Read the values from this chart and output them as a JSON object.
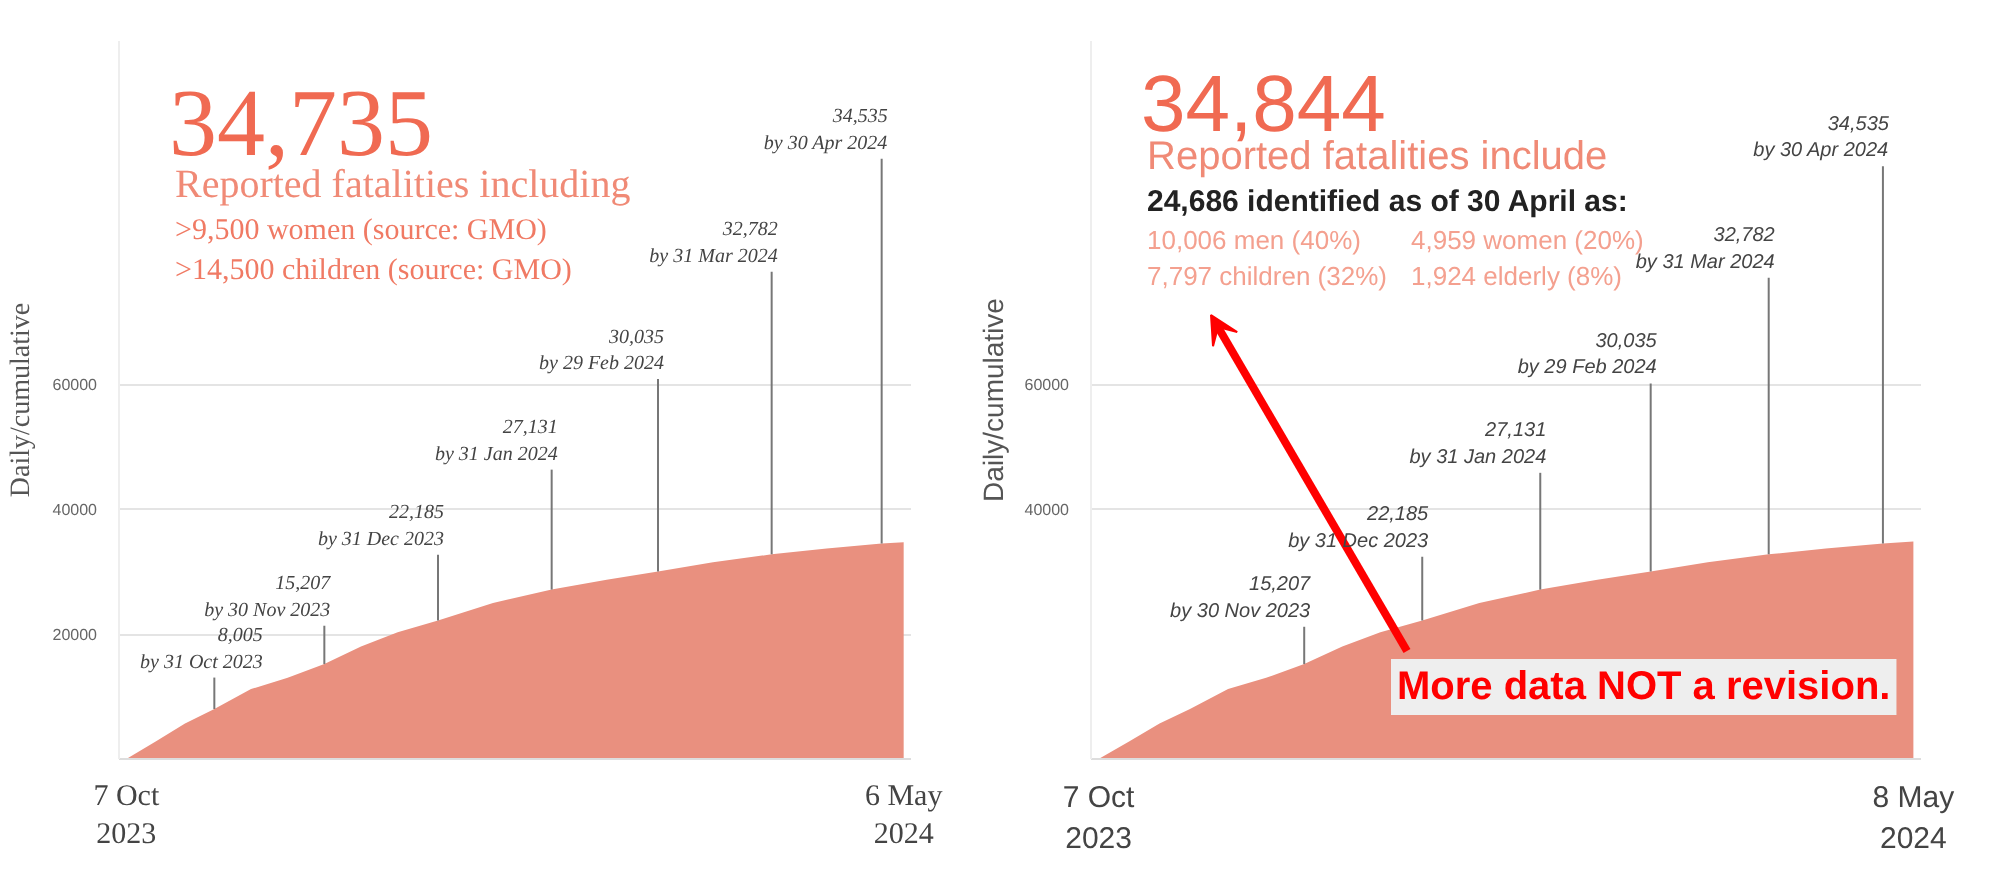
{
  "chart_data": [
    {
      "type": "area",
      "title": "34,735",
      "subtitle": "Reported fatalities including",
      "ylabel": "Daily/cumulative",
      "color": "#e9907f",
      "x": [
        "2023-10-07",
        "2023-10-15",
        "2023-10-23",
        "2023-10-31",
        "2023-11-10",
        "2023-11-20",
        "2023-11-30",
        "2023-12-10",
        "2023-12-20",
        "2023-12-31",
        "2024-01-15",
        "2024-01-31",
        "2024-02-15",
        "2024-02-29",
        "2024-03-15",
        "2024-03-31",
        "2024-04-15",
        "2024-04-30",
        "2024-05-06"
      ],
      "values": [
        0,
        2800,
        5700,
        8005,
        11200,
        13000,
        15207,
        18000,
        20300,
        22185,
        25000,
        27131,
        28700,
        30035,
        31500,
        32782,
        33700,
        34535,
        34735
      ],
      "xlim": [
        "2023-10-05",
        "2024-05-08"
      ],
      "ylim": [
        0,
        115000
      ],
      "xticks": [
        {
          "value": "2023-10-07",
          "label": "7 Oct\n2023"
        },
        {
          "value": "2024-05-06",
          "label": "6 May\n2024"
        }
      ],
      "yticks": [
        20000,
        40000,
        60000
      ],
      "grid": "y",
      "annotations": [
        ">9,500 women (source: GMO)",
        ">14,500 children (source: GMO)",
        {
          "text": "8,005\nby 31 Oct 2023",
          "x": "2023-10-31",
          "y": 8005
        },
        {
          "text": "15,207\nby 30 Nov 2023",
          "x": "2023-11-30",
          "y": 15207
        },
        {
          "text": "22,185\nby 31 Dec 2023",
          "x": "2023-12-31",
          "y": 22185
        },
        {
          "text": "27,131\nby 31 Jan 2024",
          "x": "2024-01-31",
          "y": 27131
        },
        {
          "text": "30,035\nby 29 Feb 2024",
          "x": "2024-02-29",
          "y": 30035
        },
        {
          "text": "32,782\nby 31 Mar 2024",
          "x": "2024-03-31",
          "y": 32782
        },
        {
          "text": "34,535\nby 30 Apr 2024",
          "x": "2024-04-30",
          "y": 34535
        }
      ]
    },
    {
      "type": "area",
      "title": "34,844",
      "subtitle": "Reported fatalities include",
      "ylabel": "Daily/cumulative",
      "color": "#e9907f",
      "x": [
        "2023-10-07",
        "2023-10-15",
        "2023-10-23",
        "2023-10-31",
        "2023-11-10",
        "2023-11-20",
        "2023-11-30",
        "2023-12-10",
        "2023-12-20",
        "2023-12-31",
        "2024-01-15",
        "2024-01-31",
        "2024-02-15",
        "2024-02-29",
        "2024-03-15",
        "2024-03-31",
        "2024-04-15",
        "2024-04-30",
        "2024-05-08"
      ],
      "values": [
        0,
        2800,
        5700,
        8005,
        11200,
        13000,
        15207,
        18000,
        20300,
        22185,
        25000,
        27131,
        28700,
        30035,
        31500,
        32782,
        33700,
        34535,
        34844
      ],
      "xlim": [
        "2023-10-05",
        "2024-05-10"
      ],
      "ylim": [
        0,
        115000
      ],
      "xticks": [
        {
          "value": "2023-10-07",
          "label": "7 Oct\n2023"
        },
        {
          "value": "2024-05-08",
          "label": "8 May\n2024"
        }
      ],
      "yticks": [
        40000,
        60000
      ],
      "grid": "y",
      "annotations": [
        "24,686 identified as of 30 April as:",
        "10,006 men (40%)",
        "4,959 women (20%)",
        "7,797 children (32%)",
        "1,924 elderly (8%)",
        "More data NOT a revision.",
        {
          "text": "15,207\nby 30 Nov 2023",
          "x": "2023-11-30",
          "y": 15207
        },
        {
          "text": "22,185\nby 31 Dec 2023",
          "x": "2023-12-31",
          "y": 22185
        },
        {
          "text": "27,131\nby 31 Jan 2024",
          "x": "2024-01-31",
          "y": 27131
        },
        {
          "text": "30,035\nby 29 Feb 2024",
          "x": "2024-02-29",
          "y": 30035
        },
        {
          "text": "32,782\nby 31 Mar 2024",
          "x": "2024-03-31",
          "y": 32782
        },
        {
          "text": "34,535\nby 30 Apr 2024",
          "x": "2024-04-30",
          "y": 34535
        }
      ]
    }
  ]
}
